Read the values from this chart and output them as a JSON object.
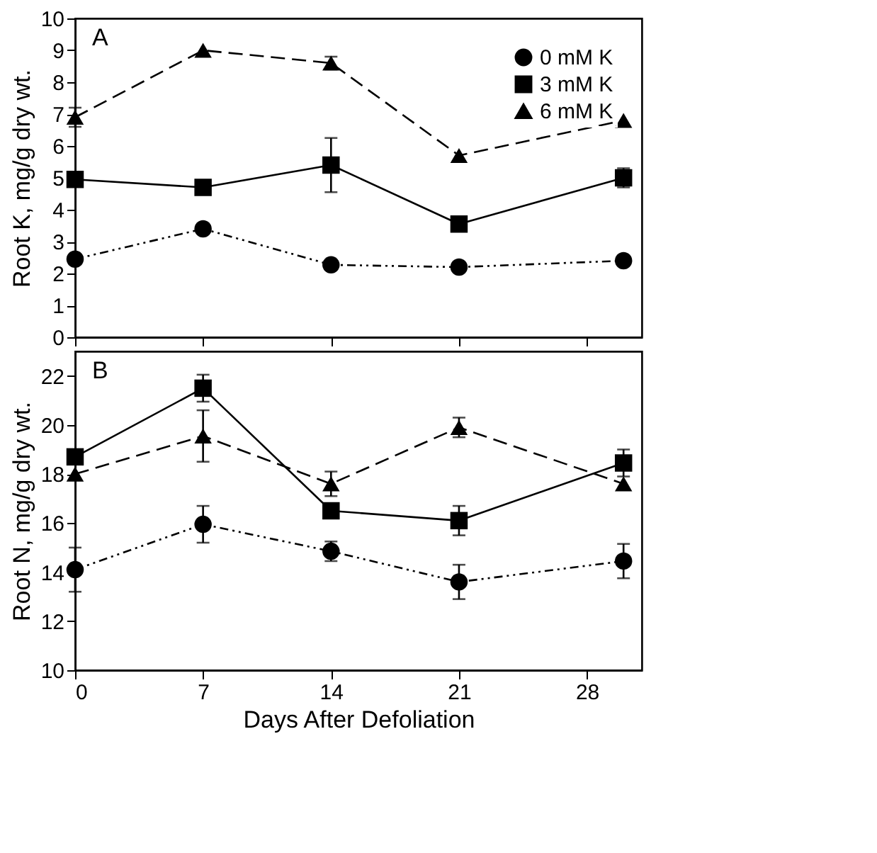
{
  "chart_data": [
    {
      "type": "line",
      "ylabel": "Root K, mg/g dry wt.",
      "annotations": [
        "A"
      ],
      "x": [
        0,
        7,
        14,
        21,
        30
      ],
      "xlim": [
        0,
        31
      ],
      "xticks": [
        0,
        7,
        14,
        21,
        28
      ],
      "ylim": [
        0,
        10
      ],
      "yticks": [
        0,
        1,
        2,
        3,
        4,
        5,
        6,
        7,
        8,
        9,
        10
      ],
      "tick_labels": "y",
      "grid": false,
      "legend": "top right",
      "series": [
        {
          "name": "0 mM K",
          "color": "#000000",
          "marker": "circle",
          "line_style": "dotted",
          "values": [
            2.45,
            3.4,
            2.27,
            2.2,
            2.4
          ],
          "errors": [
            null,
            null,
            null,
            null,
            null
          ]
        },
        {
          "name": "3 mM K",
          "color": "#000000",
          "marker": "square",
          "line_style": "solid",
          "values": [
            4.95,
            4.7,
            5.4,
            3.55,
            5.0
          ],
          "errors": [
            null,
            null,
            0.85,
            null,
            0.3
          ]
        },
        {
          "name": "6 mM K",
          "color": "#000000",
          "marker": "triangle",
          "line_style": "dashed",
          "values": [
            6.9,
            9.0,
            8.6,
            5.7,
            6.8
          ],
          "errors": [
            0.3,
            null,
            0.2,
            null,
            null
          ]
        }
      ]
    },
    {
      "type": "line",
      "xlabel": "Days After Defoliation",
      "ylabel": "Root N, mg/g dry wt.",
      "annotations": [
        "B"
      ],
      "x": [
        0,
        7,
        14,
        21,
        30
      ],
      "xlim": [
        0,
        31
      ],
      "xticks": [
        0,
        7,
        14,
        21,
        28
      ],
      "ylim": [
        10,
        23
      ],
      "yticks": [
        10,
        12,
        14,
        16,
        18,
        20,
        22
      ],
      "grid": false,
      "legend": false,
      "series": [
        {
          "color": "#000000",
          "marker": "circle",
          "line_style": "dotted",
          "values": [
            14.1,
            15.95,
            14.85,
            13.6,
            14.45
          ],
          "errors": [
            0.9,
            0.75,
            0.4,
            0.7,
            0.7
          ]
        },
        {
          "color": "#000000",
          "marker": "square",
          "line_style": "solid",
          "values": [
            18.7,
            21.5,
            16.5,
            16.1,
            18.45
          ],
          "errors": [
            null,
            0.55,
            null,
            0.6,
            0.55
          ]
        },
        {
          "color": "#000000",
          "marker": "triangle",
          "line_style": "dashed",
          "values": [
            18.0,
            19.55,
            17.6,
            19.9,
            17.6
          ],
          "errors": [
            null,
            1.05,
            0.5,
            0.4,
            null
          ]
        }
      ]
    }
  ]
}
